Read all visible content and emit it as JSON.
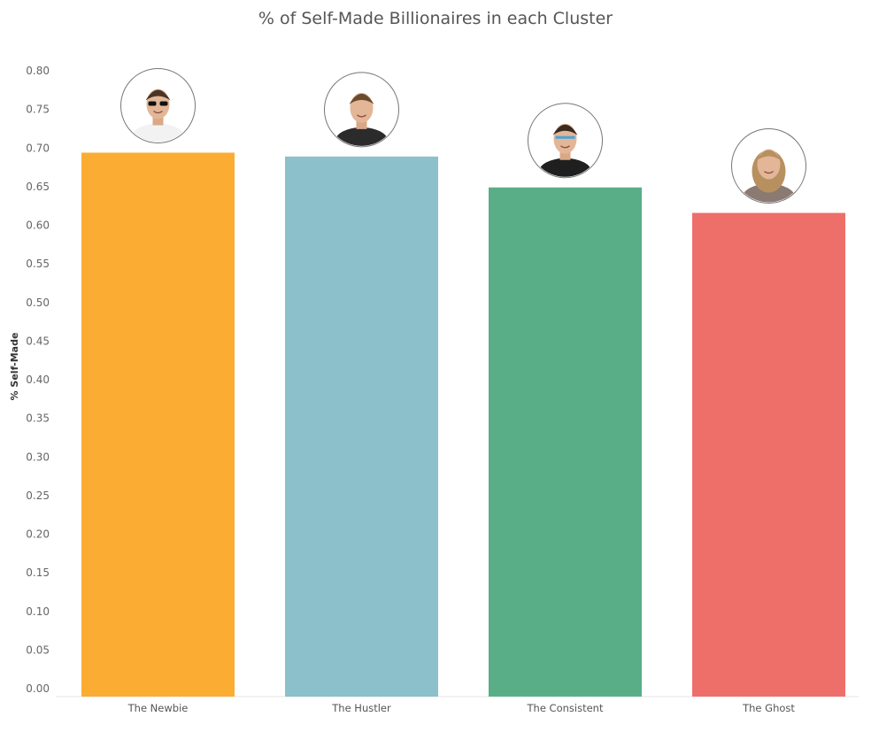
{
  "chart_data": {
    "type": "bar",
    "title": "% of Self-Made Billionaires in each Cluster",
    "xlabel": "",
    "ylabel": "% Self-Made",
    "ylim": [
      0,
      0.8
    ],
    "yticks": [
      "0.00",
      "0.05",
      "0.10",
      "0.15",
      "0.20",
      "0.25",
      "0.30",
      "0.35",
      "0.40",
      "0.45",
      "0.50",
      "0.55",
      "0.60",
      "0.65",
      "0.70",
      "0.75",
      "0.80"
    ],
    "grid": false,
    "categories": [
      "The Newbie",
      "The Hustler",
      "The Consistent",
      "The Ghost"
    ],
    "values": [
      0.694,
      0.689,
      0.649,
      0.616
    ],
    "colors": [
      "#FBAC33",
      "#8CC0CA",
      "#59AE88",
      "#EE6F69"
    ],
    "avatars": [
      "avatar-icon-newbie",
      "avatar-icon-hustler",
      "avatar-icon-consistent",
      "avatar-icon-ghost"
    ]
  }
}
